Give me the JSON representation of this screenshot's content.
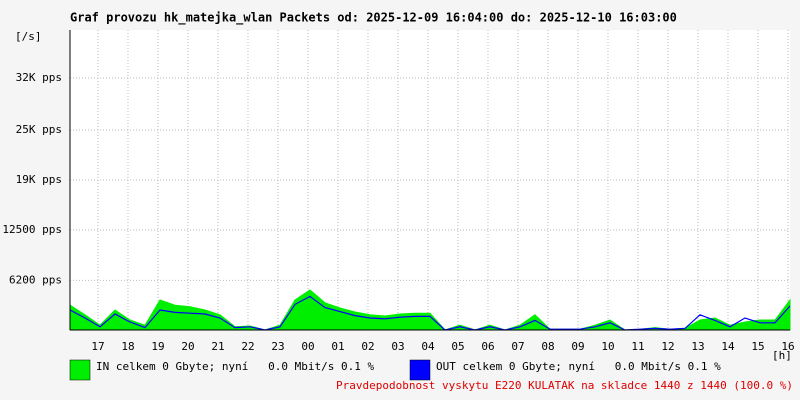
{
  "chart_data": {
    "type": "line",
    "title": "Graf provozu hk_matejka_wlan Packets od: 2025-12-09 16:04:00 do: 2025-12-10 16:03:00",
    "ylabel": "[/s]",
    "xlabel": "[h]",
    "x": [
      0,
      0.5,
      1,
      1.5,
      2,
      2.5,
      3,
      3.5,
      4,
      4.5,
      5,
      5.5,
      6,
      6.5,
      7,
      7.5,
      8,
      8.5,
      9,
      9.5,
      10,
      10.5,
      11,
      11.5,
      12,
      12.5,
      13,
      13.5,
      14,
      14.5,
      15,
      15.5,
      16,
      16.5,
      17,
      17.5,
      18,
      18.5,
      19,
      19.5,
      20,
      20.5,
      21,
      21.5,
      22,
      22.5,
      23,
      23.5,
      24
    ],
    "xlim": [
      0,
      24
    ],
    "xticks": [
      {
        "value": 0.933,
        "label": "17"
      },
      {
        "value": 1.933,
        "label": "18"
      },
      {
        "value": 2.933,
        "label": "19"
      },
      {
        "value": 3.933,
        "label": "20"
      },
      {
        "value": 4.933,
        "label": "21"
      },
      {
        "value": 5.933,
        "label": "22"
      },
      {
        "value": 6.933,
        "label": "23"
      },
      {
        "value": 7.933,
        "label": "00"
      },
      {
        "value": 8.933,
        "label": "01"
      },
      {
        "value": 9.933,
        "label": "02"
      },
      {
        "value": 10.933,
        "label": "03"
      },
      {
        "value": 11.933,
        "label": "04"
      },
      {
        "value": 12.933,
        "label": "05"
      },
      {
        "value": 13.933,
        "label": "06"
      },
      {
        "value": 14.933,
        "label": "07"
      },
      {
        "value": 15.933,
        "label": "08"
      },
      {
        "value": 16.933,
        "label": "09"
      },
      {
        "value": 17.933,
        "label": "10"
      },
      {
        "value": 18.933,
        "label": "11"
      },
      {
        "value": 19.933,
        "label": "12"
      },
      {
        "value": 20.933,
        "label": "13"
      },
      {
        "value": 21.933,
        "label": "14"
      },
      {
        "value": 22.933,
        "label": "15"
      },
      {
        "value": 23.933,
        "label": "16"
      }
    ],
    "ylim": [
      0,
      37500
    ],
    "yticks": [
      {
        "value": 6200,
        "label": "6200 pps"
      },
      {
        "value": 12500,
        "label": "12500 pps"
      },
      {
        "value": 18750,
        "label": "19K pps"
      },
      {
        "value": 25000,
        "label": "25K pps"
      },
      {
        "value": 31500,
        "label": "32K pps"
      }
    ],
    "grid": true,
    "series": [
      {
        "name": "IN celkem 0 Gbyte; nyní   0.0 Mbit/s 0.1 %",
        "color": "#00ee00",
        "style": "area",
        "values": [
          3100,
          1900,
          600,
          2500,
          1250,
          600,
          3750,
          3100,
          2900,
          2500,
          1900,
          400,
          500,
          0,
          600,
          3750,
          5000,
          3400,
          2750,
          2250,
          1900,
          1750,
          2000,
          2100,
          2100,
          0,
          600,
          0,
          600,
          0,
          600,
          1900,
          100,
          100,
          100,
          600,
          1250,
          0,
          100,
          300,
          100,
          200,
          1250,
          1500,
          600,
          1000,
          1250,
          1250,
          3750
        ]
      },
      {
        "name": "OUT celkem 0 Gbyte; nyní   0.0 Mbit/s 0.1 %",
        "color": "#0000ff",
        "style": "line",
        "values": [
          2500,
          1500,
          400,
          2000,
          1000,
          300,
          2500,
          2200,
          2100,
          2000,
          1500,
          300,
          400,
          0,
          400,
          3200,
          4200,
          2800,
          2300,
          1800,
          1500,
          1400,
          1600,
          1700,
          1700,
          0,
          400,
          0,
          400,
          0,
          400,
          1200,
          100,
          100,
          100,
          400,
          900,
          0,
          100,
          200,
          100,
          200,
          1900,
          1200,
          400,
          1500,
          900,
          900,
          3000
        ]
      }
    ],
    "note": "Pravdepodobnost vyskytu E220 KULATAK na skladce 1440 z 1440 (100.0 %)"
  }
}
